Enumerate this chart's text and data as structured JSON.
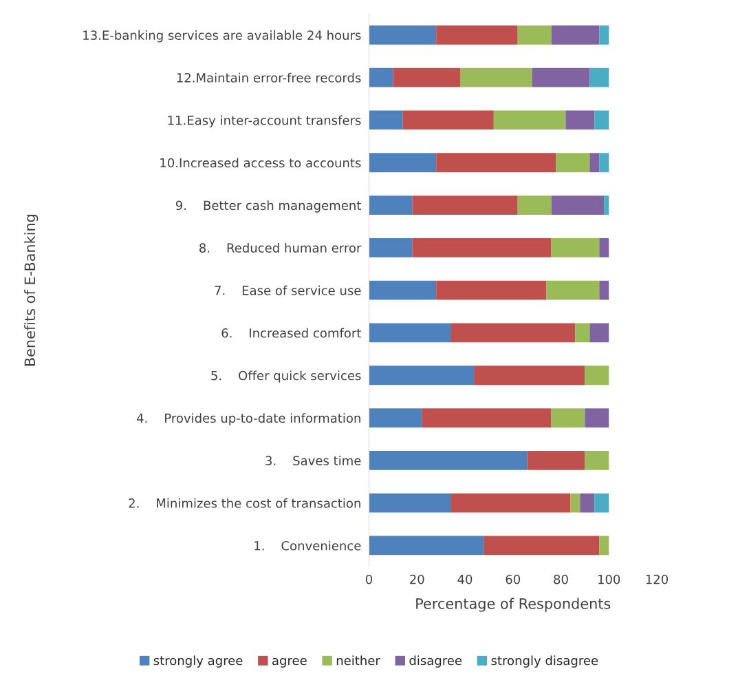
{
  "chart_data": {
    "type": "bar",
    "orientation": "horizontal",
    "stacked": true,
    "ylabel": "Benefits of E-Banking",
    "xlabel": "Percentage of Respondents",
    "categories": [
      "13.E-banking services are available 24 hours",
      "12.Maintain error-free records",
      "11.Easy inter-account transfers",
      "10.Increased access to accounts",
      "9.    Better cash management",
      "8.    Reduced human error",
      "7.    Ease of service use",
      "6.    Increased comfort",
      "5.    Offer quick services",
      "4.    Provides up-to-date information",
      "3.    Saves time",
      "2.    Minimizes the cost of transaction",
      "1.    Convenience"
    ],
    "series": [
      {
        "name": "strongly agree",
        "color": "#4f81bd",
        "values": [
          28,
          10,
          14,
          28,
          18,
          18,
          28,
          34,
          44,
          22,
          66,
          34,
          48
        ]
      },
      {
        "name": "agree",
        "color": "#c0504d",
        "values": [
          34,
          28,
          38,
          50,
          44,
          58,
          46,
          52,
          46,
          54,
          24,
          50,
          48
        ]
      },
      {
        "name": "neither",
        "color": "#9bbb59",
        "values": [
          14,
          30,
          30,
          14,
          14,
          20,
          22,
          6,
          10,
          14,
          10,
          4,
          4
        ]
      },
      {
        "name": "disagree",
        "color": "#8064a2",
        "values": [
          20,
          24,
          12,
          4,
          22,
          4,
          4,
          8,
          0,
          10,
          0,
          6,
          0
        ]
      },
      {
        "name": "strongly disagree",
        "color": "#4bacc6",
        "values": [
          4,
          8,
          6,
          4,
          2,
          0,
          0,
          0,
          0,
          0,
          0,
          6,
          0
        ]
      }
    ],
    "xlim": [
      0,
      120
    ],
    "xticks": [
      0,
      20,
      40,
      60,
      80,
      100,
      120
    ],
    "grid": false,
    "legend": "bottom"
  }
}
